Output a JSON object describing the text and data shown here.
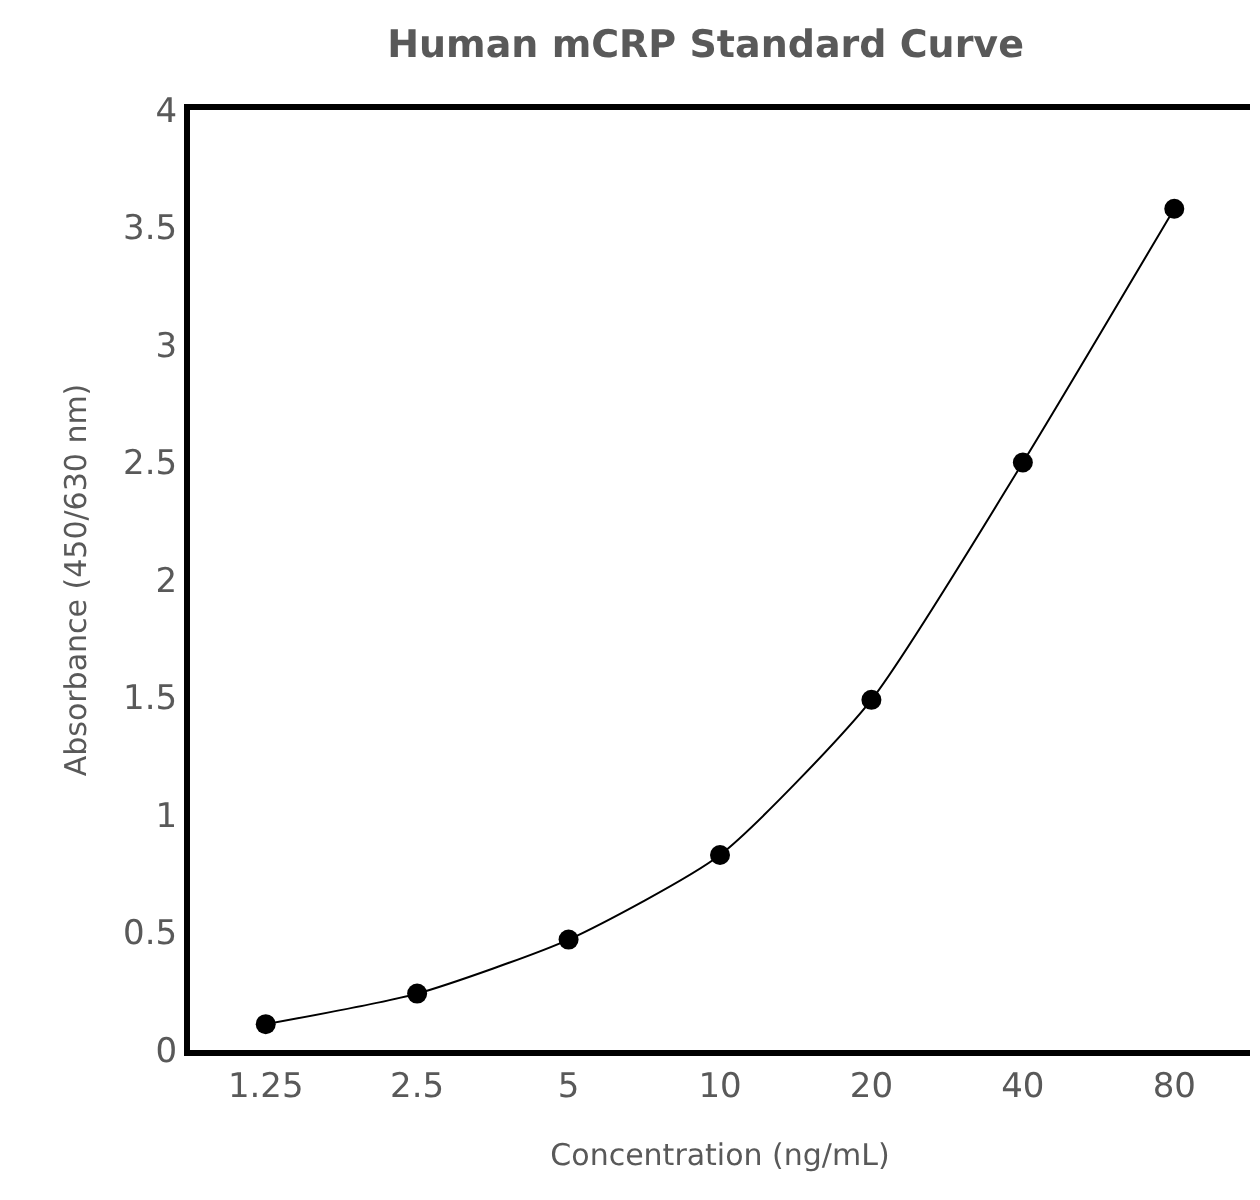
{
  "chart_data": {
    "type": "line",
    "title": "Human mCRP Standard Curve",
    "xlabel": "Concentration (ng/mL)",
    "ylabel": "Absorbance (450/630 nm)",
    "categories": [
      "1.25",
      "2.5",
      "5",
      "10",
      "20",
      "40",
      "80"
    ],
    "series": [
      {
        "color": "#000000",
        "values": [
          0.11,
          0.24,
          0.47,
          0.83,
          1.49,
          2.5,
          3.58
        ]
      }
    ],
    "ylim": [
      0,
      4
    ],
    "yticks": [
      0,
      0.5,
      1,
      1.5,
      2,
      2.5,
      3,
      3.5,
      4
    ],
    "marker": "circle",
    "line_style": "solid"
  }
}
